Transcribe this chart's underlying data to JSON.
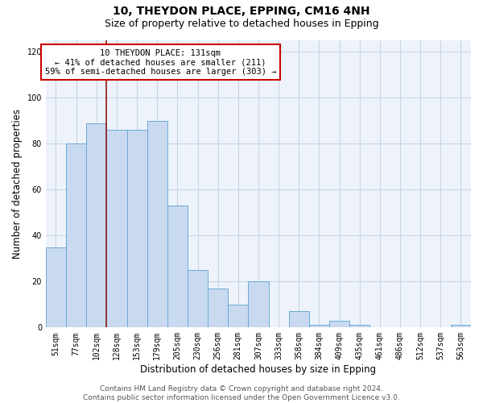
{
  "title1": "10, THEYDON PLACE, EPPING, CM16 4NH",
  "title2": "Size of property relative to detached houses in Epping",
  "xlabel": "Distribution of detached houses by size in Epping",
  "ylabel": "Number of detached properties",
  "bar_labels": [
    "51sqm",
    "77sqm",
    "102sqm",
    "128sqm",
    "153sqm",
    "179sqm",
    "205sqm",
    "230sqm",
    "256sqm",
    "281sqm",
    "307sqm",
    "333sqm",
    "358sqm",
    "384sqm",
    "409sqm",
    "435sqm",
    "461sqm",
    "486sqm",
    "512sqm",
    "537sqm",
    "563sqm"
  ],
  "bar_values": [
    35,
    80,
    89,
    86,
    86,
    90,
    53,
    25,
    17,
    10,
    20,
    0,
    7,
    1,
    3,
    1,
    0,
    0,
    0,
    0,
    1
  ],
  "bar_color": "#c9d9f0",
  "bar_edge_color": "#6aabd5",
  "vline_x_index": 2.5,
  "vline_color": "#8b1a1a",
  "annotation_text": "10 THEYDON PLACE: 131sqm\n← 41% of detached houses are smaller (211)\n59% of semi-detached houses are larger (303) →",
  "annotation_box_color": "#ffffff",
  "annotation_box_edge_color": "#cc0000",
  "ylim": [
    0,
    125
  ],
  "yticks": [
    0,
    20,
    40,
    60,
    80,
    100,
    120
  ],
  "grid_color": "#c8d4e8",
  "bg_color": "#eef3fb",
  "footnote": "Contains HM Land Registry data © Crown copyright and database right 2024.\nContains public sector information licensed under the Open Government Licence v3.0.",
  "title1_fontsize": 10,
  "title2_fontsize": 9,
  "xlabel_fontsize": 8.5,
  "ylabel_fontsize": 8.5,
  "tick_fontsize": 7,
  "annotation_fontsize": 7.5,
  "footnote_fontsize": 6.5
}
